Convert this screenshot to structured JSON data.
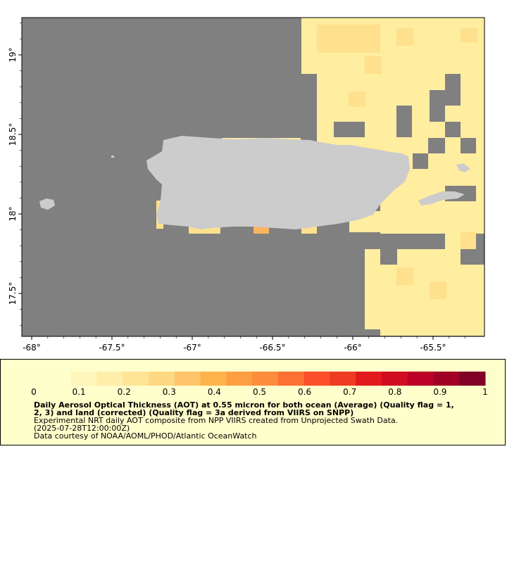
{
  "map": {
    "x_ticks": [
      {
        "value": -68,
        "label": "-68°"
      },
      {
        "value": -67.5,
        "label": "-67.5°"
      },
      {
        "value": -67,
        "label": "-67°"
      },
      {
        "value": -66.5,
        "label": "-66.5°"
      },
      {
        "value": -66,
        "label": "-66°"
      },
      {
        "value": -65.5,
        "label": "-65.5°"
      }
    ],
    "y_ticks": [
      {
        "value": 19,
        "label": "19°"
      },
      {
        "value": 18.5,
        "label": "18.5°"
      },
      {
        "value": 18,
        "label": "18°"
      },
      {
        "value": 17.5,
        "label": "17.5°"
      }
    ],
    "colors": {
      "no_data": "#808080",
      "land": "#cccccc",
      "aot_low": "#ffeda0",
      "aot_mid": "#ffe08c",
      "aot_high": "#fdb45e"
    }
  },
  "legend": {
    "ticks": [
      "0",
      "0.1",
      "0.2",
      "0.3",
      "0.4",
      "0.5",
      "0.6",
      "0.7",
      "0.8",
      "0.9",
      "1"
    ],
    "colors": [
      "#ffffcc",
      "#fff6bb",
      "#ffedaa",
      "#ffe496",
      "#fed883",
      "#fec56a",
      "#feb24c",
      "#fd9e43",
      "#fd8d3c",
      "#fc7034",
      "#fc4e2a",
      "#ef3b24",
      "#e31a1c",
      "#cf0c20",
      "#bd0026",
      "#a00026",
      "#800026"
    ],
    "title_line1": "Daily Aerosol Optical Thickness (AOT) at 0.55 micron for both ocean (Average) (Quality flag = 1,",
    "title_line2": "2, 3) and land (corrected) (Quality flag = 3a derived from VIIRS on SNPP)",
    "subtitle_line1": "Experimental NRT daily AOT composite from NPP VIIRS created from Unprojected Swath Data.",
    "subtitle_line2": "(2025-07-28T12:00:00Z)",
    "credit": "Data courtesy of NOAA/AOML/PHOD/Atlantic OceanWatch"
  }
}
